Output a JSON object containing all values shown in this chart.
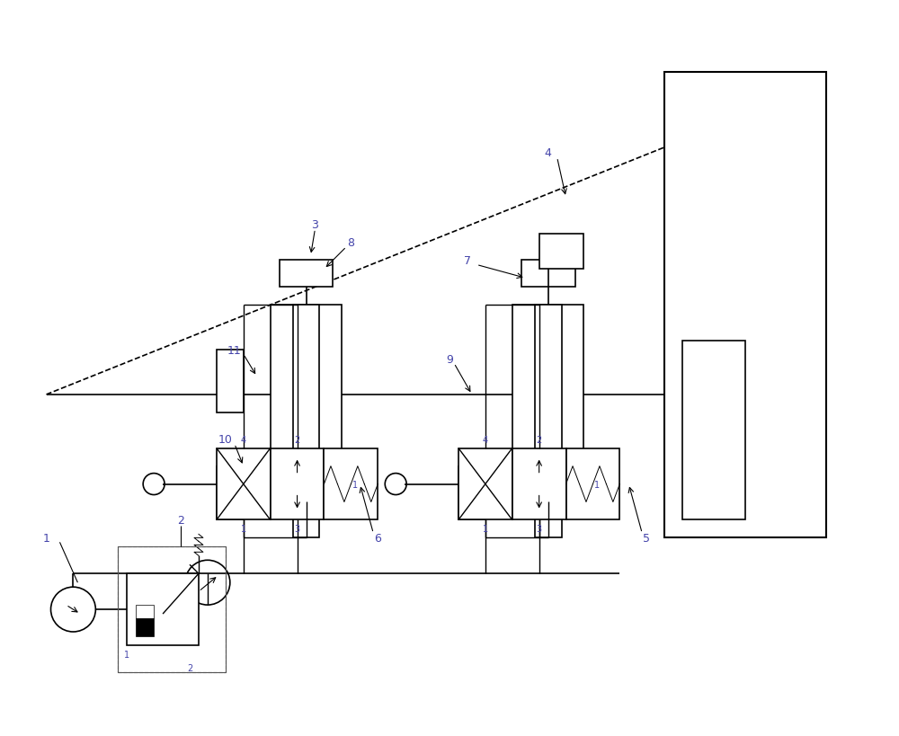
{
  "bg_color": "#ffffff",
  "line_color": "#000000",
  "label_color": "#4444aa",
  "figsize": [
    10.0,
    8.2
  ],
  "dpi": 100
}
